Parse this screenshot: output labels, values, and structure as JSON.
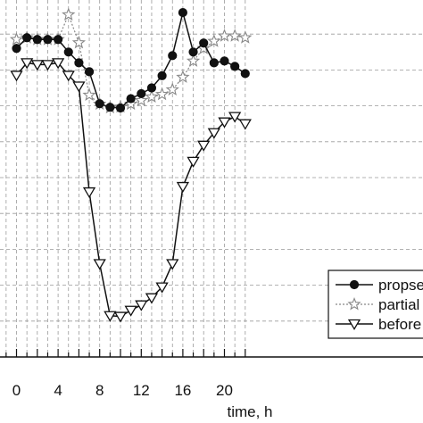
{
  "chart_data": {
    "type": "line",
    "xlabel": "time, h",
    "ylabel": "",
    "xlim": [
      -1.5,
      22
    ],
    "ylim": [
      0,
      1
    ],
    "x_ticks": [
      0,
      4,
      8,
      12,
      16,
      20
    ],
    "x_tick_labels": [
      "0",
      "4",
      "8",
      "12",
      "16",
      "20"
    ],
    "y_tick_values": [
      0.1,
      0.2,
      0.3,
      0.4,
      0.5,
      0.6,
      0.7,
      0.8,
      0.9
    ],
    "grid": true,
    "legend_position": "bottom-right",
    "series": [
      {
        "name": "propsed",
        "style": "solid",
        "marker": "circle-filled",
        "color": "#111111",
        "x": [
          0,
          1,
          2,
          3,
          4,
          5,
          6,
          7,
          8,
          9,
          10,
          11,
          12,
          13,
          14,
          15,
          16,
          17,
          18,
          19,
          20,
          21,
          22
        ],
        "y": [
          0.86,
          0.89,
          0.885,
          0.885,
          0.885,
          0.85,
          0.82,
          0.795,
          0.706,
          0.696,
          0.694,
          0.72,
          0.734,
          0.75,
          0.784,
          0.84,
          0.96,
          0.85,
          0.875,
          0.82,
          0.825,
          0.81,
          0.79
        ]
      },
      {
        "name": "partial",
        "style": "dotted",
        "marker": "star-open",
        "color": "#888888",
        "x": [
          0,
          1,
          2,
          3,
          4,
          5,
          6,
          7,
          8,
          9,
          10,
          11,
          12,
          13,
          14,
          15,
          16,
          17,
          18,
          19,
          20,
          21,
          22
        ],
        "y": [
          0.885,
          0.89,
          0.885,
          0.885,
          0.885,
          0.954,
          0.876,
          0.73,
          0.705,
          0.695,
          0.697,
          0.705,
          0.715,
          0.725,
          0.732,
          0.745,
          0.78,
          0.825,
          0.86,
          0.88,
          0.895,
          0.895,
          0.89
        ]
      },
      {
        "name": "before",
        "style": "solid",
        "marker": "triangle-down-open",
        "color": "#111111",
        "x": [
          0,
          1,
          2,
          3,
          4,
          5,
          6,
          7,
          8,
          9,
          10,
          11,
          12,
          13,
          14,
          15,
          16,
          17,
          18,
          19,
          20,
          21,
          22
        ],
        "y": [
          0.785,
          0.82,
          0.815,
          0.815,
          0.82,
          0.785,
          0.755,
          0.46,
          0.26,
          0.115,
          0.113,
          0.13,
          0.145,
          0.165,
          0.195,
          0.26,
          0.475,
          0.545,
          0.59,
          0.625,
          0.655,
          0.67,
          0.65
        ]
      }
    ]
  }
}
